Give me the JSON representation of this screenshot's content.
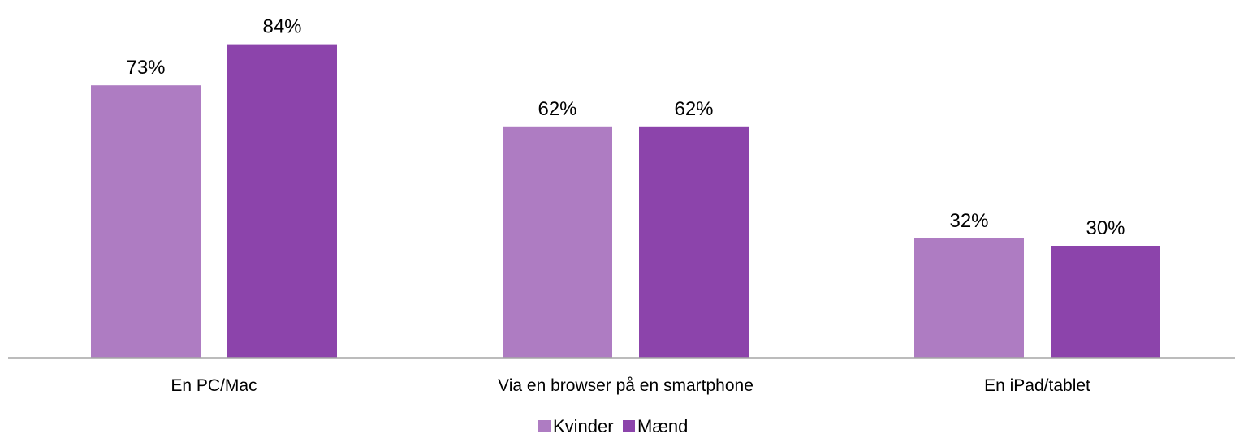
{
  "chart_data": {
    "type": "bar",
    "categories": [
      "En PC/Mac",
      "Via en browser på en smartphone",
      "En iPad/tablet"
    ],
    "series": [
      {
        "name": "Kvinder",
        "values": [
          73,
          62,
          32
        ],
        "color": "#AE7CC2"
      },
      {
        "name": "Mænd",
        "values": [
          84,
          62,
          30
        ],
        "color": "#8C44AB"
      }
    ],
    "value_suffix": "%",
    "ylim": [
      0,
      100
    ],
    "grid": false,
    "legend_position": "bottom",
    "axis_color": "#A6A6A6"
  }
}
